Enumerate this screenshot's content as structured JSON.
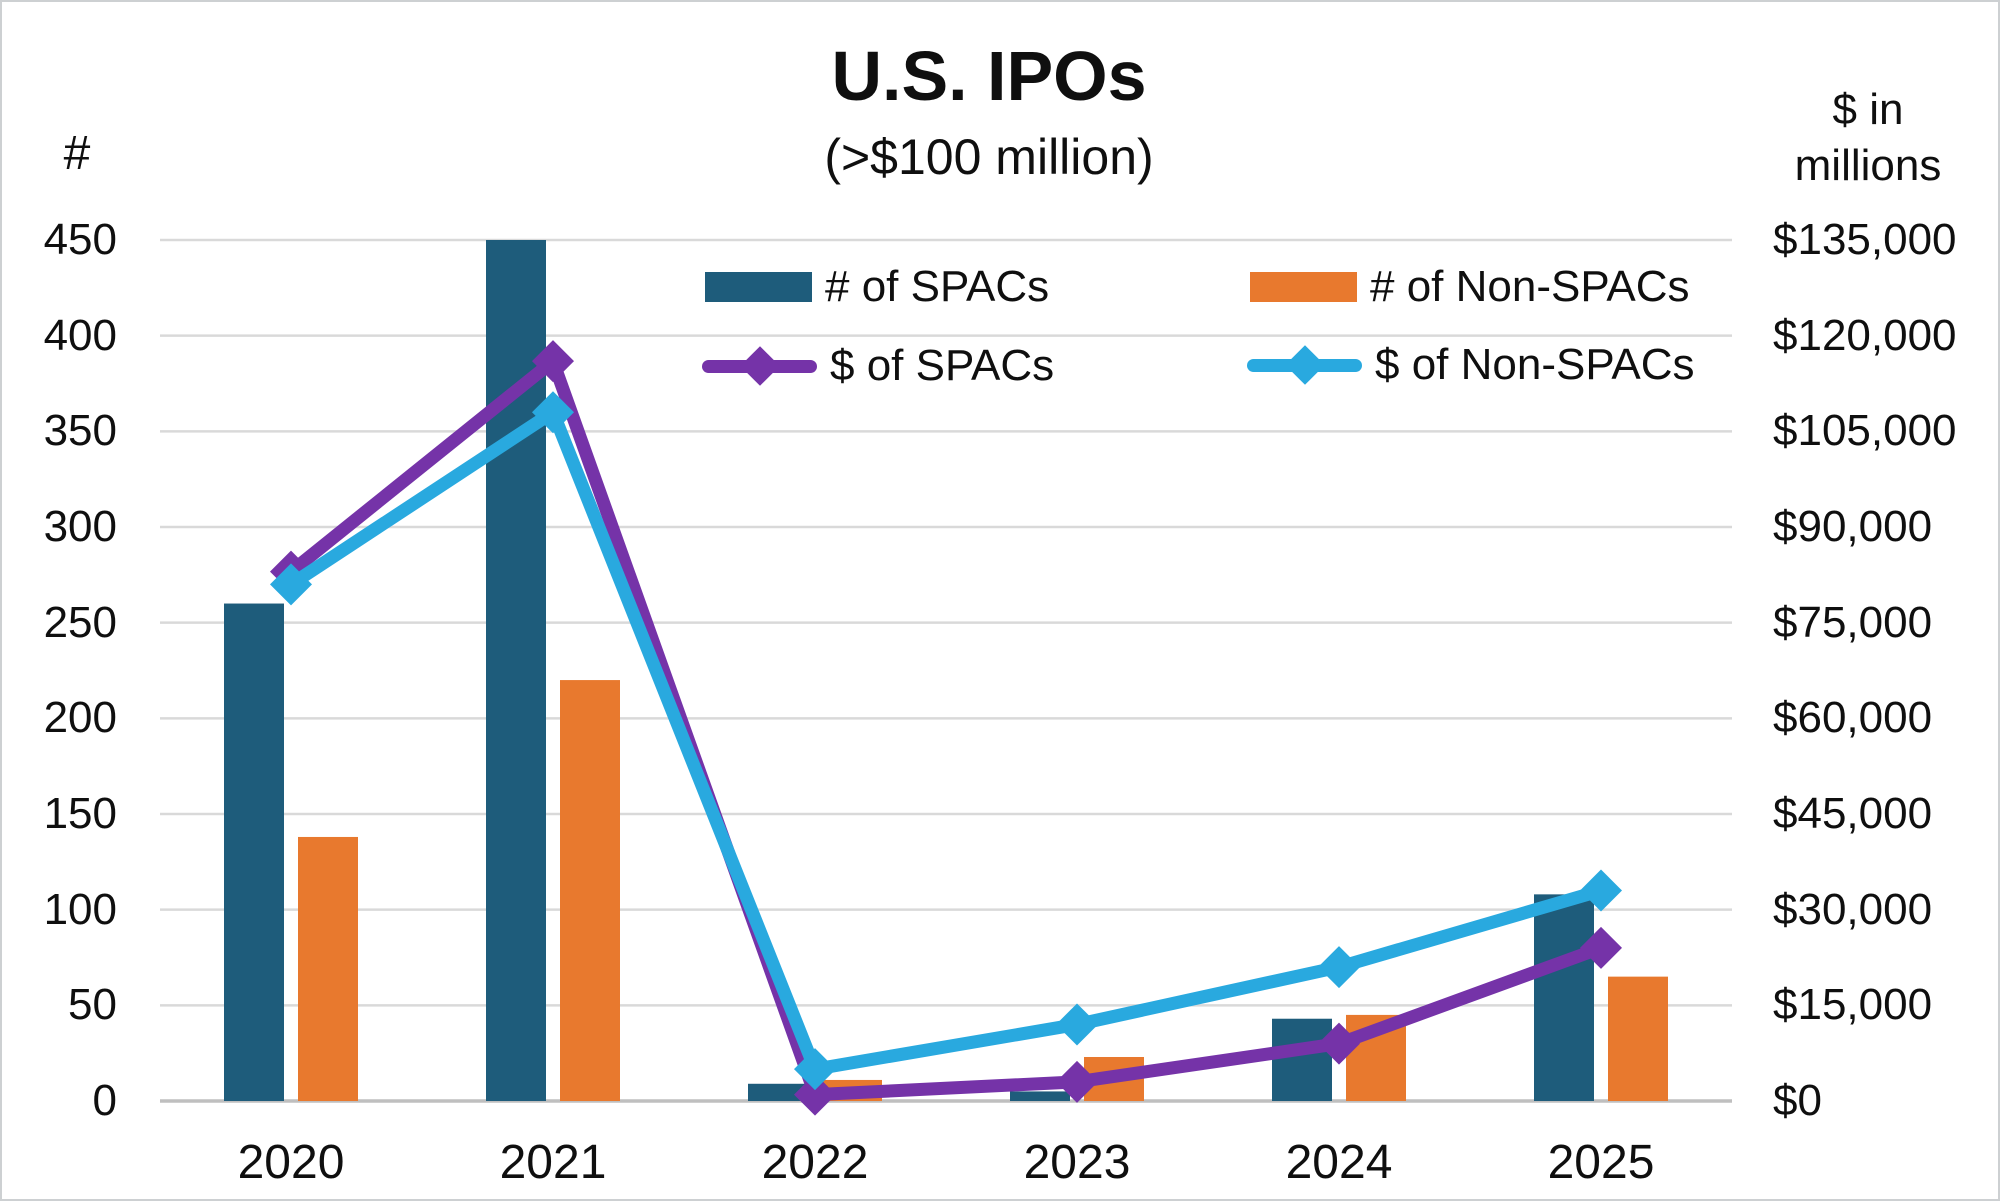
{
  "title": "U.S. IPOs",
  "subtitle": "(>$100 million)",
  "axes": {
    "left_title": "#",
    "right_title_line1": "$ in",
    "right_title_line2": "millions"
  },
  "legend": {
    "items": [
      {
        "label": "# of SPACs",
        "swatch": "bar",
        "color": "#1E5C7B"
      },
      {
        "label": "# of Non-SPACs",
        "swatch": "bar",
        "color": "#E8792E"
      },
      {
        "label": "$ of SPACs",
        "swatch": "line-diamond",
        "color": "#7533A8"
      },
      {
        "label": "$ of Non-SPACs",
        "swatch": "line-diamond",
        "color": "#29A9DF"
      }
    ]
  },
  "chart_data": {
    "type": "combo-bar-line",
    "title": "U.S. IPOs",
    "subtitle": "(>$100 million)",
    "categories": [
      "2020",
      "2021",
      "2022",
      "2023",
      "2024",
      "2025"
    ],
    "series": [
      {
        "name": "# of SPACs",
        "type": "bar",
        "axis": "left",
        "color": "#1E5C7B",
        "values": [
          260,
          450,
          9,
          5,
          43,
          108
        ]
      },
      {
        "name": "# of Non-SPACs",
        "type": "bar",
        "axis": "left",
        "color": "#E8792E",
        "values": [
          138,
          220,
          11,
          23,
          45,
          65
        ]
      },
      {
        "name": "$ of SPACs",
        "type": "line",
        "axis": "right",
        "color": "#7533A8",
        "marker": "diamond",
        "values": [
          83000,
          116000,
          1000,
          3000,
          9000,
          24000
        ]
      },
      {
        "name": "$ of Non-SPACs",
        "type": "line",
        "axis": "right",
        "color": "#29A9DF",
        "marker": "diamond",
        "values": [
          81000,
          108000,
          5000,
          12000,
          21000,
          33000
        ]
      }
    ],
    "left_axis": {
      "label": "#",
      "min": 0,
      "max": 450,
      "step": 50,
      "tick_labels": [
        "0",
        "50",
        "100",
        "150",
        "200",
        "250",
        "300",
        "350",
        "400",
        "450"
      ]
    },
    "right_axis": {
      "label": "$ in millions",
      "min": 0,
      "max": 135000,
      "step": 15000,
      "tick_labels": [
        "$0",
        "$15,000",
        "$30,000",
        "$45,000",
        "$60,000",
        "$75,000",
        "$90,000",
        "$105,000",
        "$120,000",
        "$135,000"
      ]
    },
    "grid": "horizontal",
    "legend_position": "inside-top-center"
  },
  "colors": {
    "grid": "#D9D9D9",
    "axis_line": "#BFBFBF",
    "text": "#0F0F0F",
    "background": "#FFFFFF",
    "frame_border": "#CDD0D2"
  }
}
